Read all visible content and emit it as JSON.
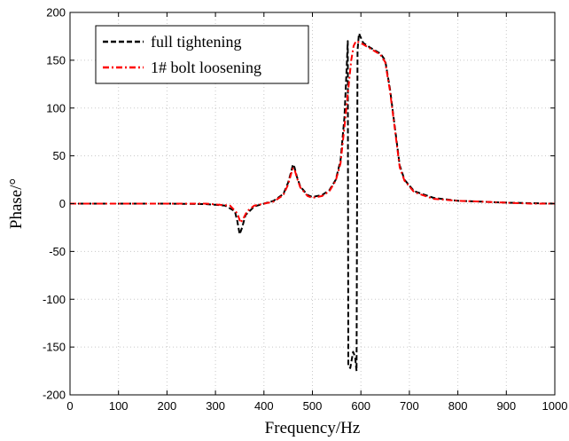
{
  "chart_data": {
    "type": "line",
    "title": "",
    "xlabel": "Frequency/Hz",
    "ylabel": "Phase/°",
    "xlim": [
      0,
      1000
    ],
    "ylim": [
      -200,
      200
    ],
    "xticks": [
      0,
      100,
      200,
      300,
      400,
      500,
      600,
      700,
      800,
      900,
      1000
    ],
    "yticks": [
      -200,
      -150,
      -100,
      -50,
      0,
      50,
      100,
      150,
      200
    ],
    "grid": true,
    "legend_position": "top-left",
    "series": [
      {
        "name": "full tightening",
        "color": "#000000",
        "dash": "dashed",
        "points": [
          [
            0,
            0
          ],
          [
            100,
            0
          ],
          [
            200,
            0
          ],
          [
            280,
            -0.5
          ],
          [
            320,
            -2
          ],
          [
            340,
            -8
          ],
          [
            345,
            -18
          ],
          [
            350,
            -32
          ],
          [
            355,
            -25
          ],
          [
            362,
            -12
          ],
          [
            380,
            -3
          ],
          [
            400,
            0
          ],
          [
            420,
            3
          ],
          [
            440,
            10
          ],
          [
            450,
            22
          ],
          [
            456,
            33
          ],
          [
            460,
            41
          ],
          [
            463,
            38
          ],
          [
            468,
            28
          ],
          [
            475,
            18
          ],
          [
            490,
            9
          ],
          [
            500,
            7
          ],
          [
            520,
            9
          ],
          [
            535,
            14
          ],
          [
            548,
            25
          ],
          [
            558,
            45
          ],
          [
            566,
            90
          ],
          [
            571,
            145
          ],
          [
            573,
            170
          ],
          [
            574,
            -170
          ],
          [
            578,
            -172
          ],
          [
            584,
            -155
          ],
          [
            588,
            -160
          ],
          [
            591,
            -175
          ],
          [
            593,
            160
          ],
          [
            596,
            178
          ],
          [
            605,
            168
          ],
          [
            620,
            163
          ],
          [
            640,
            157
          ],
          [
            650,
            150
          ],
          [
            660,
            120
          ],
          [
            670,
            80
          ],
          [
            680,
            40
          ],
          [
            690,
            25
          ],
          [
            710,
            13
          ],
          [
            750,
            6
          ],
          [
            800,
            3
          ],
          [
            850,
            2
          ],
          [
            900,
            1
          ],
          [
            950,
            0.5
          ],
          [
            1000,
            0
          ]
        ]
      },
      {
        "name": "1# bolt loosening",
        "color": "#ff0000",
        "dash": "dash-dot",
        "points": [
          [
            0,
            0
          ],
          [
            100,
            0
          ],
          [
            200,
            0
          ],
          [
            280,
            0
          ],
          [
            330,
            -2
          ],
          [
            345,
            -10
          ],
          [
            352,
            -20
          ],
          [
            357,
            -16
          ],
          [
            365,
            -8
          ],
          [
            380,
            -2
          ],
          [
            400,
            0
          ],
          [
            420,
            2
          ],
          [
            440,
            9
          ],
          [
            450,
            20
          ],
          [
            456,
            31
          ],
          [
            460,
            37
          ],
          [
            463,
            36
          ],
          [
            468,
            27
          ],
          [
            475,
            17
          ],
          [
            490,
            8
          ],
          [
            500,
            6
          ],
          [
            520,
            8
          ],
          [
            535,
            13
          ],
          [
            548,
            24
          ],
          [
            558,
            42
          ],
          [
            566,
            80
          ],
          [
            574,
            120
          ],
          [
            580,
            150
          ],
          [
            585,
            165
          ],
          [
            590,
            170
          ],
          [
            600,
            168
          ],
          [
            620,
            162
          ],
          [
            640,
            156
          ],
          [
            650,
            148
          ],
          [
            660,
            118
          ],
          [
            670,
            78
          ],
          [
            680,
            38
          ],
          [
            690,
            24
          ],
          [
            710,
            12
          ],
          [
            750,
            5
          ],
          [
            800,
            3
          ],
          [
            850,
            2
          ],
          [
            900,
            1
          ],
          [
            950,
            0
          ],
          [
            1000,
            0
          ]
        ]
      }
    ]
  }
}
